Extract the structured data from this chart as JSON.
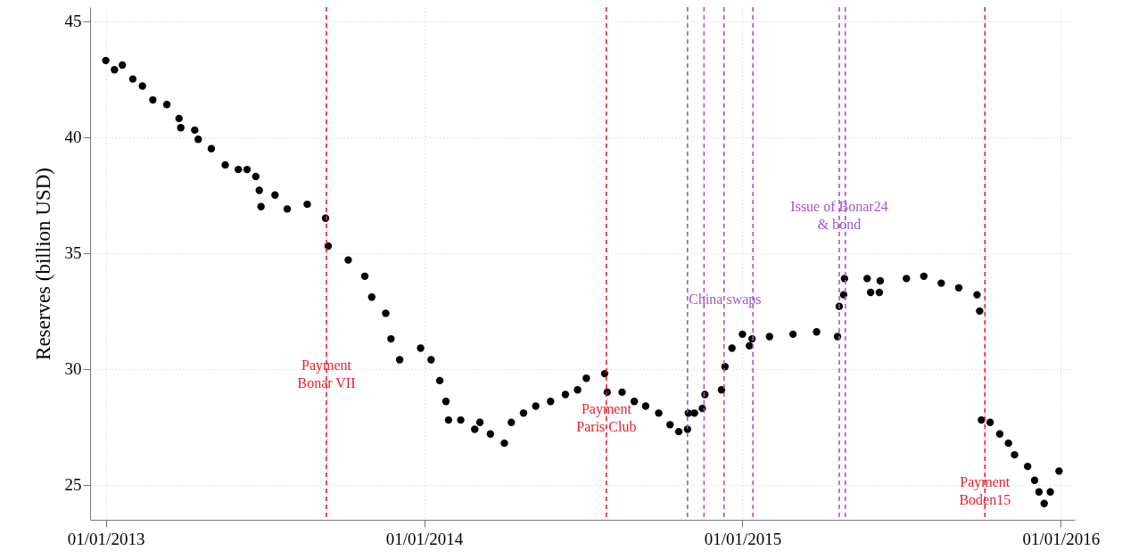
{
  "chart_data": {
    "type": "scatter",
    "ylabel": "Reserves (billion USD)",
    "marker": "circle",
    "grid": true,
    "xlim": [
      "2012-12-14",
      "2016-01-17"
    ],
    "xticks": [
      {
        "value": "2013-01-01",
        "label": "01/01/2013"
      },
      {
        "value": "2014-01-01",
        "label": "01/01/2014"
      },
      {
        "value": "2015-01-01",
        "label": "01/01/2015"
      },
      {
        "value": "2016-01-01",
        "label": "01/01/2016"
      }
    ],
    "ylim": [
      23.5,
      45.6
    ],
    "yticks": [
      25,
      30,
      35,
      40,
      45
    ],
    "series": [
      {
        "color": "#000000",
        "x": [
          "2013-01-01",
          "2013-01-11",
          "2013-01-20",
          "2013-02-01",
          "2013-02-12",
          "2013-02-24",
          "2013-03-12",
          "2013-03-26",
          "2013-03-28",
          "2013-04-13",
          "2013-04-17",
          "2013-05-02",
          "2013-05-18",
          "2013-06-02",
          "2013-06-12",
          "2013-06-22",
          "2013-06-26",
          "2013-06-28",
          "2013-07-14",
          "2013-07-28",
          "2013-08-20",
          "2013-09-10",
          "2013-09-13",
          "2013-10-06",
          "2013-10-25",
          "2013-11-02",
          "2013-11-18",
          "2013-11-24",
          "2013-12-04",
          "2013-12-28",
          "2014-01-09",
          "2014-01-19",
          "2014-01-26",
          "2014-01-29",
          "2014-02-12",
          "2014-02-28",
          "2014-03-06",
          "2014-03-18",
          "2014-04-03",
          "2014-04-11",
          "2014-04-25",
          "2014-05-09",
          "2014-05-26",
          "2014-06-12",
          "2014-06-26",
          "2014-07-06",
          "2014-07-27",
          "2014-07-30",
          "2014-08-16",
          "2014-08-30",
          "2014-09-12",
          "2014-09-27",
          "2014-10-10",
          "2014-10-20",
          "2014-10-30",
          "2014-10-31",
          "2014-11-07",
          "2014-11-16",
          "2014-11-19",
          "2014-12-08",
          "2014-12-12",
          "2014-12-20",
          "2015-01-01",
          "2015-01-09",
          "2015-01-12",
          "2015-02-01",
          "2015-02-28",
          "2015-03-27",
          "2015-04-20",
          "2015-04-22",
          "2015-04-27",
          "2015-04-28",
          "2015-05-24",
          "2015-05-28",
          "2015-06-07",
          "2015-06-08",
          "2015-07-08",
          "2015-07-28",
          "2015-08-17",
          "2015-09-06",
          "2015-09-27",
          "2015-09-30",
          "2015-10-02",
          "2015-10-12",
          "2015-10-23",
          "2015-11-02",
          "2015-11-09",
          "2015-11-24",
          "2015-12-02",
          "2015-12-07",
          "2015-12-13",
          "2015-12-20",
          "2015-12-30"
        ],
        "values": [
          43.3,
          42.9,
          43.1,
          42.5,
          42.2,
          41.6,
          41.4,
          40.8,
          40.4,
          40.3,
          39.9,
          39.5,
          38.8,
          38.6,
          38.6,
          38.3,
          37.7,
          37.0,
          37.5,
          36.9,
          37.1,
          36.5,
          35.3,
          34.7,
          34.0,
          33.1,
          32.4,
          31.3,
          30.4,
          30.9,
          30.4,
          29.5,
          28.6,
          27.8,
          27.8,
          27.4,
          27.7,
          27.2,
          26.8,
          27.7,
          28.1,
          28.4,
          28.6,
          28.9,
          29.1,
          29.6,
          29.8,
          29.0,
          29.0,
          28.6,
          28.4,
          28.1,
          27.6,
          27.3,
          27.4,
          28.1,
          28.1,
          28.3,
          28.9,
          29.1,
          30.1,
          30.9,
          31.5,
          31.0,
          31.3,
          31.4,
          31.5,
          31.6,
          31.4,
          32.7,
          33.2,
          33.9,
          33.9,
          33.3,
          33.3,
          33.8,
          33.9,
          34.0,
          33.7,
          33.5,
          33.2,
          32.5,
          27.8,
          27.7,
          27.2,
          26.8,
          26.3,
          25.8,
          25.2,
          24.7,
          24.2,
          24.7,
          25.6
        ]
      }
    ],
    "ref_lines": [
      {
        "axis": "x",
        "value": "2013-09-11",
        "color": "#e8202a",
        "line_style": "dashed"
      },
      {
        "axis": "x",
        "value": "2014-07-29",
        "color": "#e8202a",
        "line_style": "dashed"
      },
      {
        "axis": "x",
        "value": "2014-10-30",
        "color": "#a855c8",
        "line_style": "dashed"
      },
      {
        "axis": "x",
        "value": "2014-11-18",
        "color": "#a855c8",
        "line_style": "dashed"
      },
      {
        "axis": "x",
        "value": "2014-12-11",
        "color": "#a855c8",
        "line_style": "dashed"
      },
      {
        "axis": "x",
        "value": "2015-01-13",
        "color": "#a855c8",
        "line_style": "dashed"
      },
      {
        "axis": "x",
        "value": "2015-04-22",
        "color": "#a855c8",
        "line_style": "dashed"
      },
      {
        "axis": "x",
        "value": "2015-04-29",
        "color": "#a855c8",
        "line_style": "dashed"
      },
      {
        "axis": "x",
        "value": "2015-10-06",
        "color": "#e8202a",
        "line_style": "dashed"
      }
    ],
    "annotations": [
      {
        "text": "Payment\nBonar VII",
        "x": "2013-09-11",
        "y": 30.15
      },
      {
        "text": "Payment\nParis Club",
        "x": "2014-07-29",
        "y": 28.27
      },
      {
        "text": "China swaps",
        "x": "2014-12-12",
        "y": 33.0
      },
      {
        "text": "Issue of Bonar24\n& bond",
        "x": "2015-04-22",
        "y": 37.0
      },
      {
        "text": "Payment\nBoden15",
        "x": "2015-10-06",
        "y": 25.1
      }
    ]
  }
}
